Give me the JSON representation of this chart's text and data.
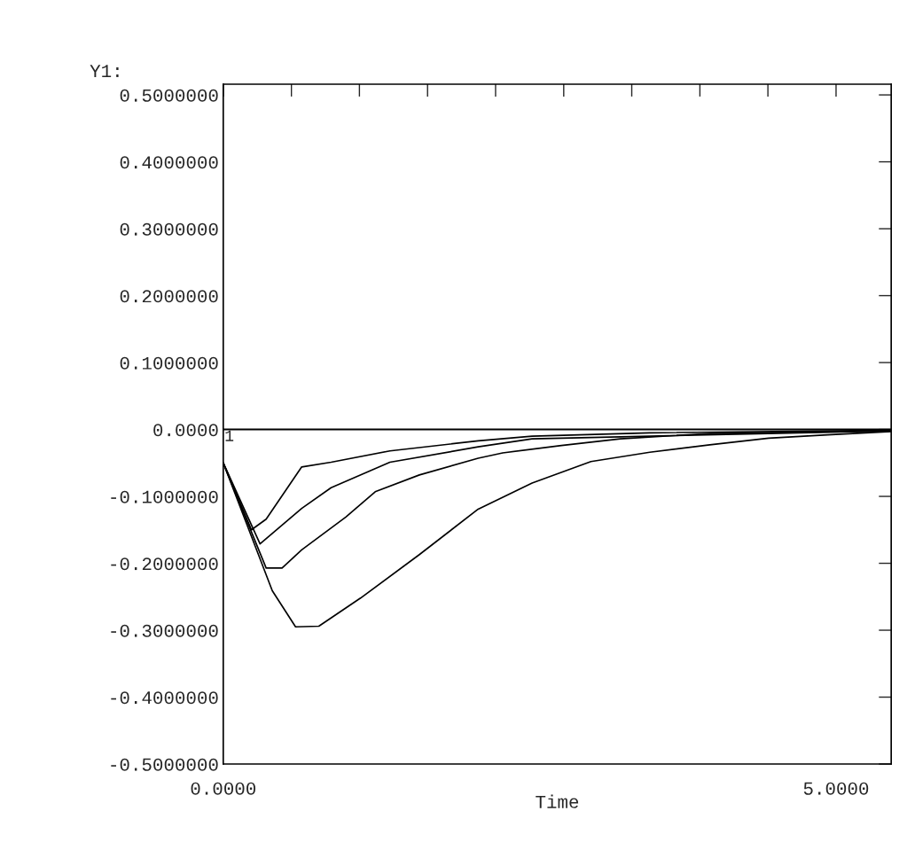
{
  "chart_data": {
    "type": "line",
    "xlabel": "Time",
    "ylabel": "Y1:",
    "xlim": [
      0,
      5.45
    ],
    "ylim": [
      -0.5,
      0.516
    ],
    "xticks": [
      {
        "value": 0,
        "label": "0.0000"
      },
      {
        "value": 0.556,
        "label": null
      },
      {
        "value": 1.111,
        "label": null
      },
      {
        "value": 1.667,
        "label": null
      },
      {
        "value": 2.222,
        "label": null
      },
      {
        "value": 2.778,
        "label": null
      },
      {
        "value": 3.333,
        "label": null
      },
      {
        "value": 3.889,
        "label": null
      },
      {
        "value": 4.444,
        "label": null
      },
      {
        "value": 5,
        "label": "5.0000"
      }
    ],
    "yticks": [
      {
        "value": -0.5,
        "label": "-0.5000000"
      },
      {
        "value": -0.4,
        "label": "-0.4000000"
      },
      {
        "value": -0.3,
        "label": "-0.3000000"
      },
      {
        "value": -0.2,
        "label": "-0.2000000"
      },
      {
        "value": -0.1,
        "label": "-0.1000000"
      },
      {
        "value": 0,
        "label": "0.0000"
      },
      {
        "value": 0.1,
        "label": "0.1000000"
      },
      {
        "value": 0.2,
        "label": "0.2000000"
      },
      {
        "value": 0.3,
        "label": "0.3000000"
      },
      {
        "value": 0.4,
        "label": "0.4000000"
      },
      {
        "value": 0.5,
        "label": "0.5000000"
      }
    ],
    "ref_lines": [
      {
        "axis": "y",
        "value": 0,
        "color": "#000000"
      }
    ],
    "annotations": [
      {
        "text": "1",
        "x": 0,
        "y": 0
      }
    ],
    "grid": false,
    "legend": false,
    "marker": "none",
    "line_style": "solid",
    "series": [
      {
        "color": "#000000",
        "x": [
          0,
          0.4,
          0.59,
          0.78,
          1.12,
          1.6,
          2.08,
          2.52,
          3.0,
          3.48,
          3.97,
          4.45,
          4.93,
          5.45
        ],
        "values": [
          -0.05,
          -0.241,
          -0.295,
          -0.294,
          -0.252,
          -0.187,
          -0.119,
          -0.08,
          -0.048,
          -0.034,
          -0.023,
          -0.013,
          -0.008,
          -0.003
        ]
      },
      {
        "color": "#000000",
        "x": [
          0,
          0.35,
          0.48,
          0.64,
          1.0,
          1.24,
          1.6,
          2.08,
          2.28,
          2.76,
          3.24,
          3.97,
          5.45
        ],
        "values": [
          -0.05,
          -0.207,
          -0.207,
          -0.18,
          -0.131,
          -0.093,
          -0.068,
          -0.043,
          -0.035,
          -0.024,
          -0.014,
          -0.006,
          -0.002
        ]
      },
      {
        "color": "#000000",
        "x": [
          0,
          0.3,
          0.64,
          0.88,
          1.36,
          2.08,
          2.52,
          3.48,
          5.45
        ],
        "values": [
          -0.05,
          -0.171,
          -0.118,
          -0.087,
          -0.049,
          -0.026,
          -0.014,
          -0.01,
          -0.002
        ]
      },
      {
        "color": "#000000",
        "x": [
          0,
          0.23,
          0.35,
          0.64,
          0.88,
          1.36,
          2.08,
          2.52,
          3.48,
          5.45
        ],
        "values": [
          -0.05,
          -0.15,
          -0.134,
          -0.056,
          -0.049,
          -0.032,
          -0.017,
          -0.01,
          -0.005,
          -0.001
        ]
      }
    ]
  }
}
